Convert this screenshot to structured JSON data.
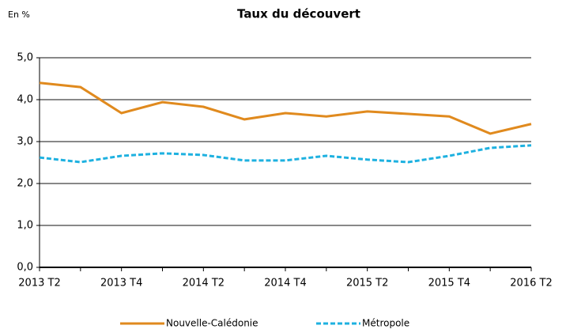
{
  "chart_data": {
    "type": "line",
    "title": "Taux du découvert",
    "y_unit_label": "En %",
    "categories": [
      "2013 T2",
      null,
      "2013 T4",
      null,
      "2014 T2",
      null,
      "2014 T4",
      null,
      "2015 T2",
      null,
      "2015 T4",
      null,
      "2016 T2"
    ],
    "series": [
      {
        "name": "Nouvelle-Calédonie",
        "color": "#e08a1e",
        "dash": false,
        "values": [
          4.4,
          4.3,
          3.68,
          3.94,
          3.83,
          3.53,
          3.68,
          3.6,
          3.72,
          3.66,
          3.6,
          3.19,
          3.42
        ]
      },
      {
        "name": "Métropole",
        "color": "#1eb1e0",
        "dash": true,
        "values": [
          2.62,
          2.51,
          2.66,
          2.72,
          2.68,
          2.55,
          2.55,
          2.66,
          2.57,
          2.51,
          2.66,
          2.85,
          2.91
        ]
      }
    ],
    "ylim": [
      0,
      5
    ],
    "yticks": [
      {
        "value": 0,
        "label": "0,0"
      },
      {
        "value": 1,
        "label": "1,0"
      },
      {
        "value": 2,
        "label": "2,0"
      },
      {
        "value": 3,
        "label": "3,0"
      },
      {
        "value": 4,
        "label": "4,0"
      },
      {
        "value": 5,
        "label": "5,0"
      }
    ],
    "grid": true,
    "legend": "bottom"
  }
}
